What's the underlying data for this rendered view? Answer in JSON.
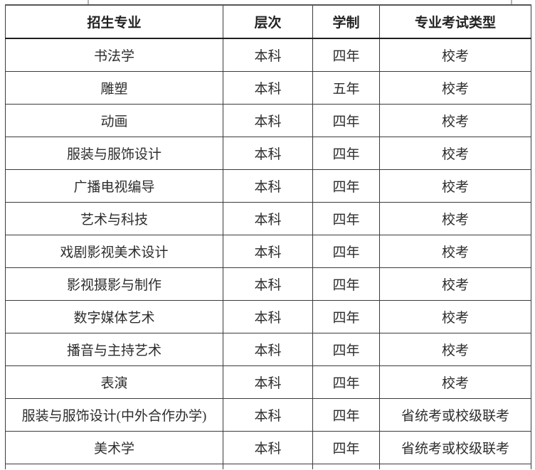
{
  "page": {
    "background_color": "#ffffff",
    "text_color": "#2d2d2d",
    "border_color": "#3b3b3b"
  },
  "table": {
    "columns": [
      {
        "id": "major",
        "label": "招生专业"
      },
      {
        "id": "level",
        "label": "层次"
      },
      {
        "id": "duration",
        "label": "学制"
      },
      {
        "id": "exam_type",
        "label": "专业考试类型"
      }
    ],
    "rows": [
      {
        "major": "书法学",
        "level": "本科",
        "duration": "四年",
        "exam_type": "校考"
      },
      {
        "major": "雕塑",
        "level": "本科",
        "duration": "五年",
        "exam_type": "校考"
      },
      {
        "major": "动画",
        "level": "本科",
        "duration": "四年",
        "exam_type": "校考"
      },
      {
        "major": "服装与服饰设计",
        "level": "本科",
        "duration": "四年",
        "exam_type": "校考"
      },
      {
        "major": "广播电视编导",
        "level": "本科",
        "duration": "四年",
        "exam_type": "校考"
      },
      {
        "major": "艺术与科技",
        "level": "本科",
        "duration": "四年",
        "exam_type": "校考"
      },
      {
        "major": "戏剧影视美术设计",
        "level": "本科",
        "duration": "四年",
        "exam_type": "校考"
      },
      {
        "major": "影视摄影与制作",
        "level": "本科",
        "duration": "四年",
        "exam_type": "校考"
      },
      {
        "major": "数字媒体艺术",
        "level": "本科",
        "duration": "四年",
        "exam_type": "校考"
      },
      {
        "major": "播音与主持艺术",
        "level": "本科",
        "duration": "四年",
        "exam_type": "校考"
      },
      {
        "major": "表演",
        "level": "本科",
        "duration": "四年",
        "exam_type": "校考"
      },
      {
        "major": "服装与服饰设计(中外合作办学)",
        "level": "本科",
        "duration": "四年",
        "exam_type": "省统考或校级联考"
      },
      {
        "major": "美术学",
        "level": "本科",
        "duration": "四年",
        "exam_type": "省统考或校级联考"
      }
    ]
  }
}
